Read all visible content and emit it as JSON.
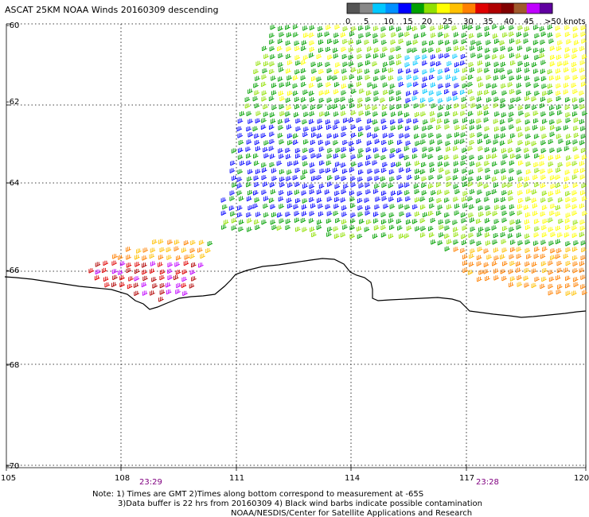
{
  "title": "ASCAT 25KM NOAA Winds 20160309 descending",
  "legend": {
    "labels": [
      "0",
      "5",
      "10",
      "15",
      "20",
      "25",
      "30",
      "35",
      "40",
      "45",
      ">50 knots"
    ],
    "colors": [
      "#555555",
      "#888888",
      "#00c8ff",
      "#0090ff",
      "#0000ff",
      "#00a000",
      "#90e000",
      "#ffff00",
      "#ffc000",
      "#ff8000",
      "#e00000",
      "#b00000",
      "#800000",
      "#a05a2c",
      "#c000ff",
      "#6000a0"
    ]
  },
  "axes": {
    "lat_labels": [
      "-60",
      "-62",
      "-64",
      "-66",
      "-68",
      "-70"
    ],
    "lon_labels": [
      "105",
      "108",
      "111",
      "114",
      "117",
      "120"
    ]
  },
  "times": [
    "23:29",
    "23:28"
  ],
  "notes": {
    "line1": "Note: 1) Times are GMT 2)Times along bottom correspond to measurement at -65S",
    "line2": "3)Data buffer is 22 hrs from 20160309 4) Black wind barbs indicate possible contamination",
    "line3": "NOAA/NESDIS/Center for Satellite Applications and Research"
  },
  "colors": {
    "coastline": "#000000",
    "grid": "#000000",
    "time_label": "#800080"
  }
}
